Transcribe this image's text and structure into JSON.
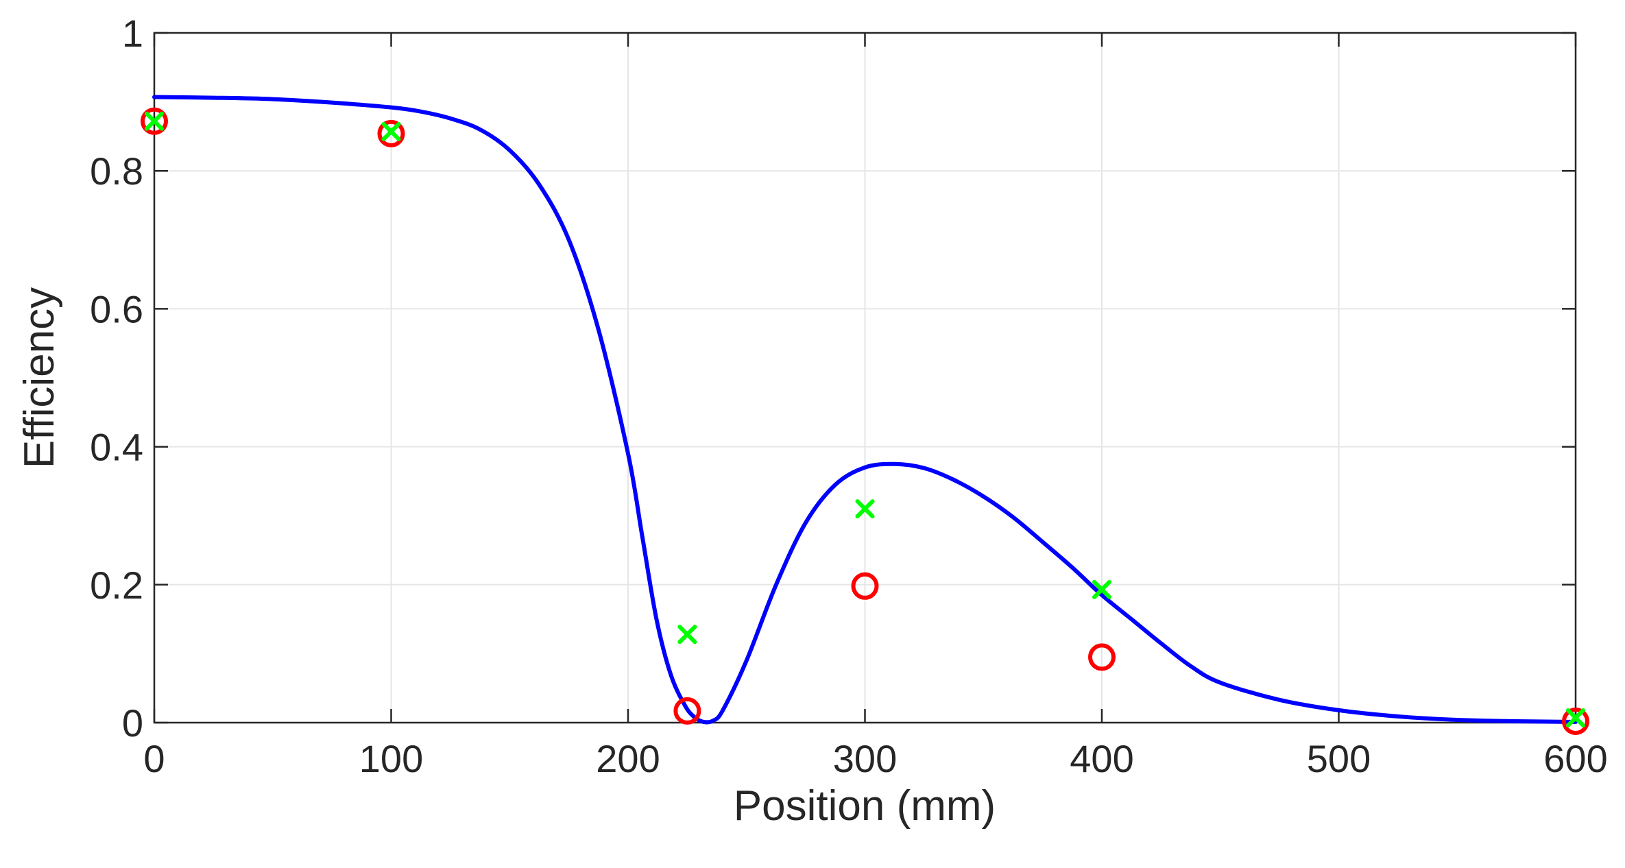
{
  "chart_data": {
    "type": "line",
    "title": "",
    "xlabel": "Position (mm)",
    "ylabel": "Efficiency",
    "xlim": [
      0,
      600
    ],
    "ylim": [
      0,
      1
    ],
    "xticks": [
      0,
      100,
      200,
      300,
      400,
      500,
      600
    ],
    "yticks": [
      0,
      0.2,
      0.4,
      0.6,
      0.8,
      1
    ],
    "xtick_labels": [
      "0",
      "100",
      "200",
      "300",
      "400",
      "500",
      "600"
    ],
    "ytick_labels": [
      "0",
      "0.2",
      "0.4",
      "0.6",
      "0.8",
      "1"
    ],
    "grid": true,
    "colors": {
      "curve": "#0000ff",
      "circles": "#ff0000",
      "crosses": "#00ff00",
      "axes": "#262626",
      "grid": "#e6e6e6"
    },
    "series": [
      {
        "name": "model curve",
        "style": "line",
        "x": [
          0,
          25,
          50,
          75,
          100,
          112.5,
          125,
          137.5,
          150,
          162.5,
          175,
          187.5,
          200,
          206,
          212,
          218,
          224,
          228,
          232,
          236,
          240,
          250,
          262.5,
          275,
          287.5,
          300,
          312.5,
          325,
          337.5,
          350,
          362.5,
          375,
          387.5,
          400,
          412.5,
          425,
          437.5,
          450,
          475,
          500,
          525,
          550,
          575,
          600
        ],
        "y": [
          0.907,
          0.906,
          0.904,
          0.899,
          0.892,
          0.886,
          0.876,
          0.86,
          0.83,
          0.78,
          0.7,
          0.57,
          0.39,
          0.27,
          0.15,
          0.07,
          0.025,
          0.008,
          0.001,
          0.003,
          0.018,
          0.09,
          0.2,
          0.29,
          0.345,
          0.37,
          0.375,
          0.369,
          0.352,
          0.328,
          0.298,
          0.262,
          0.225,
          0.185,
          0.15,
          0.115,
          0.082,
          0.058,
          0.033,
          0.018,
          0.009,
          0.004,
          0.002,
          0.001
        ]
      },
      {
        "name": "red circles",
        "style": "circle",
        "x": [
          0,
          100,
          225,
          300,
          400,
          600
        ],
        "y": [
          0.872,
          0.854,
          0.017,
          0.198,
          0.095,
          0.002
        ]
      },
      {
        "name": "green crosses",
        "style": "cross",
        "x": [
          0,
          100,
          225,
          300,
          400,
          600
        ],
        "y": [
          0.872,
          0.857,
          0.128,
          0.31,
          0.193,
          0.007
        ]
      }
    ]
  }
}
